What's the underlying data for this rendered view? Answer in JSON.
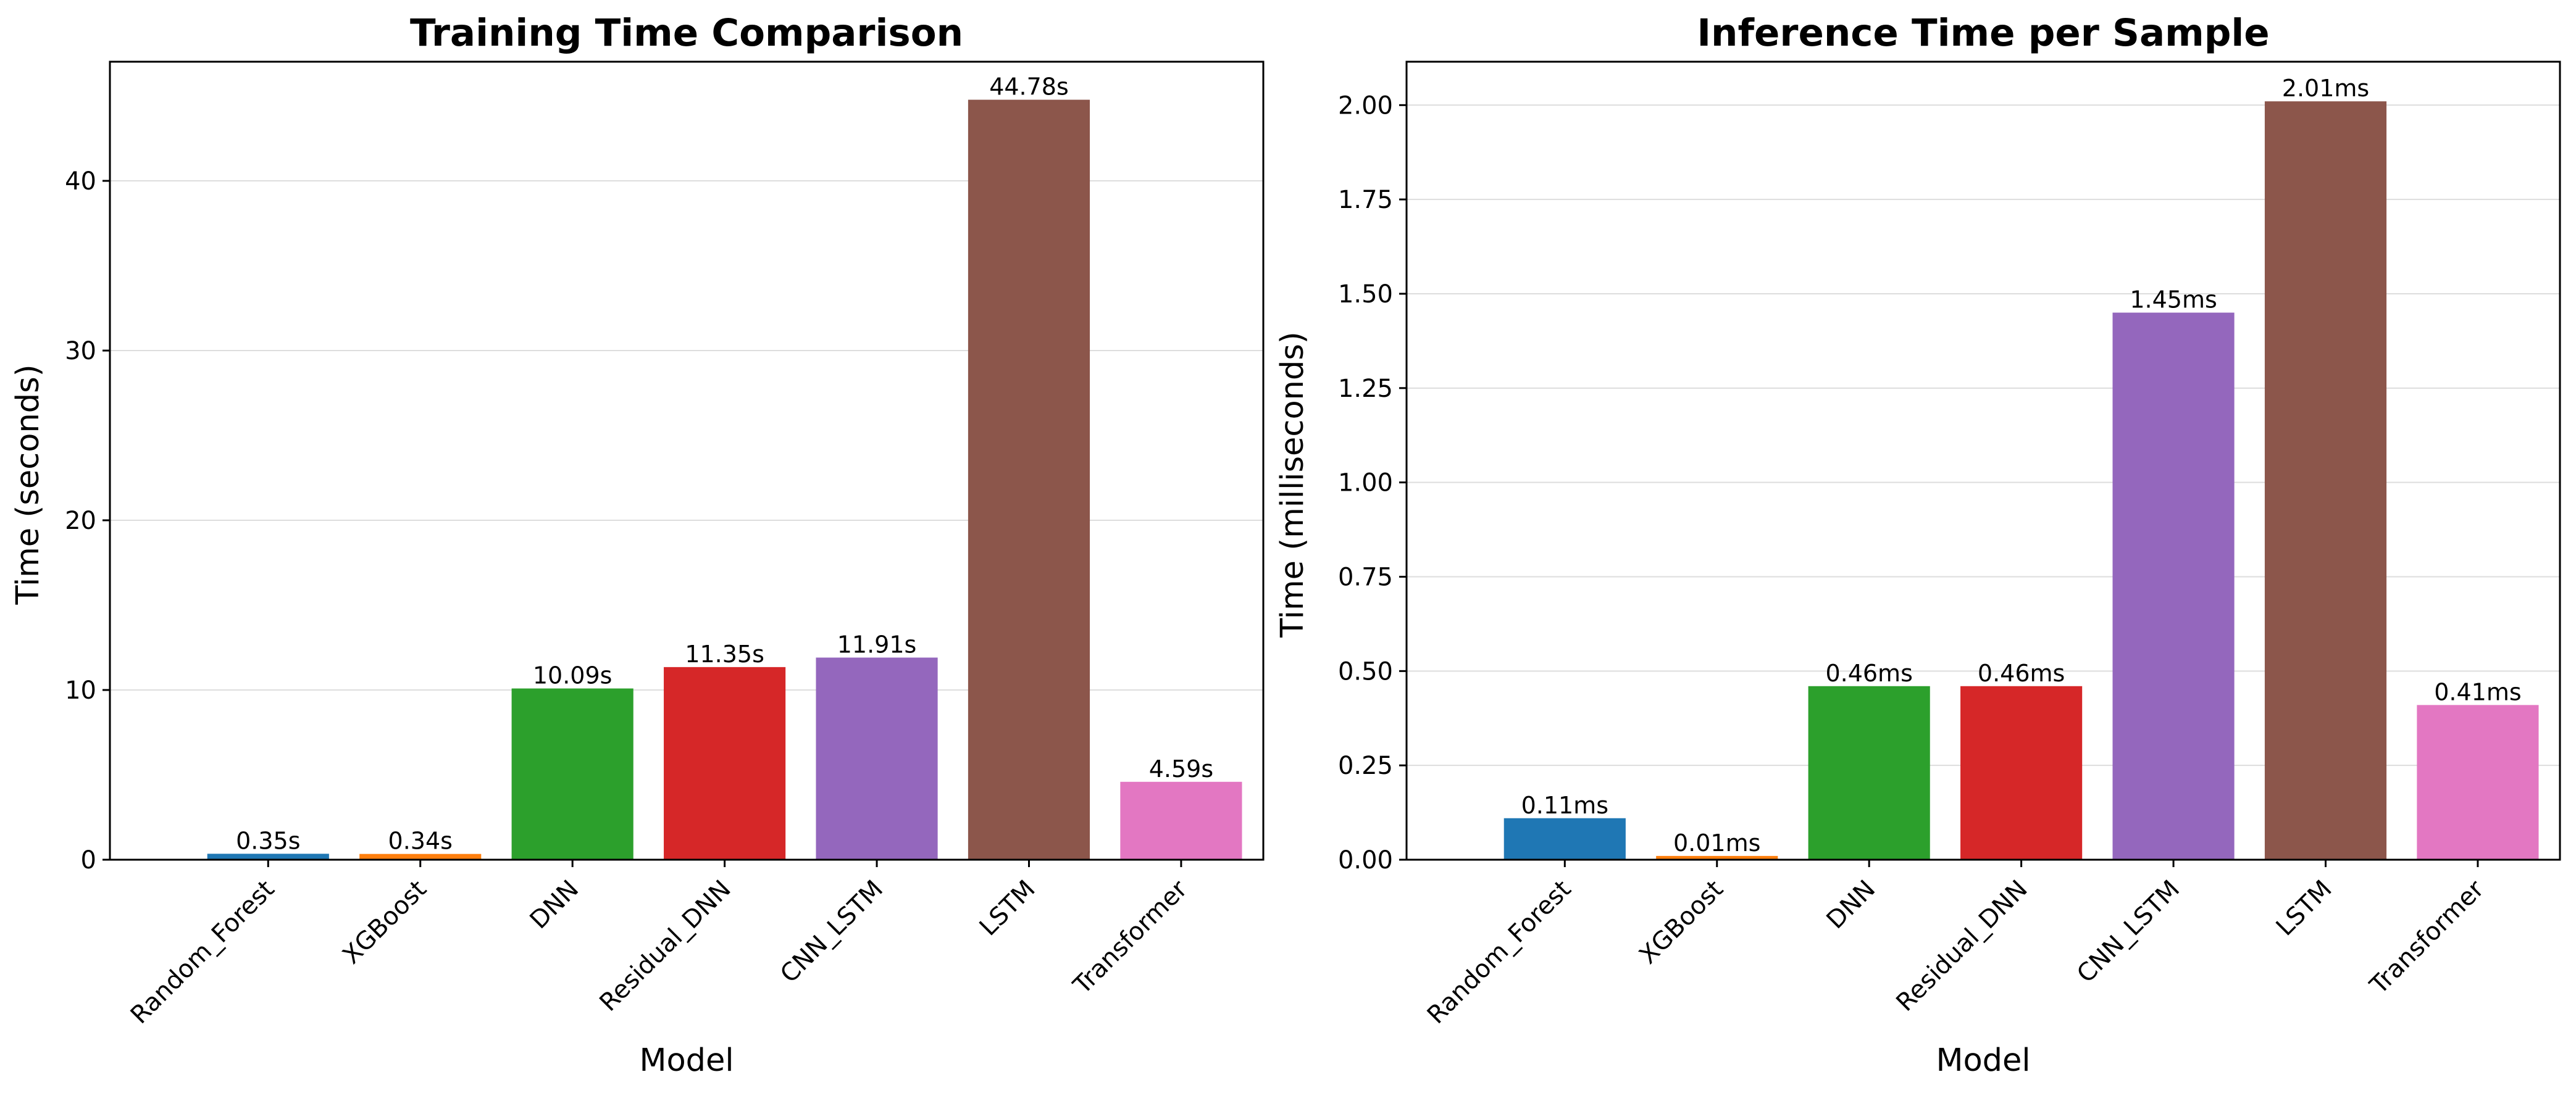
{
  "chart_data": [
    {
      "type": "bar",
      "title": "Training Time Comparison",
      "xlabel": "Model",
      "ylabel": "Time (seconds)",
      "categories": [
        "Random_Forest",
        "XGBoost",
        "DNN",
        "Residual_DNN",
        "CNN_LSTM",
        "LSTM",
        "Transformer"
      ],
      "values": [
        0.35,
        0.34,
        10.09,
        11.35,
        11.91,
        44.78,
        4.59
      ],
      "data_labels": [
        "0.35s",
        "0.34s",
        "10.09s",
        "11.35s",
        "11.91s",
        "44.78s",
        "4.59s"
      ],
      "colors": [
        "#1f77b4",
        "#ff7f0e",
        "#2ca02c",
        "#d62728",
        "#9467bd",
        "#8c564b",
        "#e377c2"
      ],
      "ylim": [
        0,
        47.02
      ],
      "yticks": [
        0,
        10,
        20,
        30,
        40
      ],
      "ytick_labels": [
        "0",
        "10",
        "20",
        "30",
        "40"
      ],
      "grid": "y"
    },
    {
      "type": "bar",
      "title": "Inference Time per Sample",
      "xlabel": "Model",
      "ylabel": "Time (milliseconds)",
      "categories": [
        "Random_Forest",
        "XGBoost",
        "DNN",
        "Residual_DNN",
        "CNN_LSTM",
        "LSTM",
        "Transformer"
      ],
      "values": [
        0.11,
        0.01,
        0.46,
        0.46,
        1.45,
        2.01,
        0.41
      ],
      "data_labels": [
        "0.11ms",
        "0.01ms",
        "0.46ms",
        "0.46ms",
        "1.45ms",
        "2.01ms",
        "0.41ms"
      ],
      "colors": [
        "#1f77b4",
        "#ff7f0e",
        "#2ca02c",
        "#d62728",
        "#9467bd",
        "#8c564b",
        "#e377c2"
      ],
      "ylim": [
        0,
        2.115
      ],
      "yticks": [
        0,
        0.25,
        0.5,
        0.75,
        1.0,
        1.25,
        1.5,
        1.75,
        2.0
      ],
      "ytick_labels": [
        "0.00",
        "0.25",
        "0.50",
        "0.75",
        "1.00",
        "1.25",
        "1.50",
        "1.75",
        "2.00"
      ],
      "grid": "y"
    }
  ]
}
